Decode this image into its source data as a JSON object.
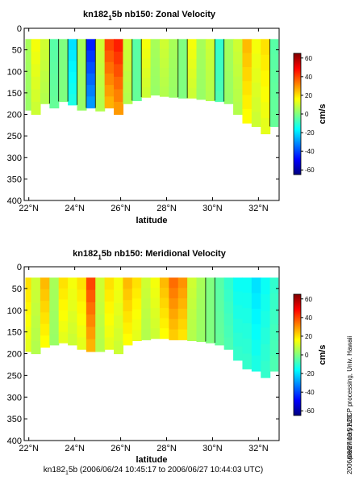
{
  "chart_data": [
    {
      "type": "heatmap",
      "title_main": "kn182",
      "title_sub": "1",
      "title_rest": "5b nb150: Zonal Velocity",
      "xlabel": "latitude",
      "ylabel": "",
      "xlim": [
        21.8,
        32.9
      ],
      "ylim": [
        400,
        0
      ],
      "xticks": [
        22,
        24,
        26,
        28,
        30,
        32
      ],
      "xtick_labels": [
        "22°N",
        "24°N",
        "26°N",
        "28°N",
        "30°N",
        "32°N"
      ],
      "yticks": [
        0,
        50,
        100,
        150,
        200,
        250,
        300,
        350,
        400
      ],
      "colorbar": {
        "label": "cm/s",
        "range": [
          -65,
          65
        ],
        "ticks": [
          -60,
          -40,
          -20,
          0,
          20,
          40,
          60
        ],
        "colormap": "jet"
      },
      "grid": false,
      "depth_top": 25,
      "x": [
        21.9,
        22.3,
        22.7,
        23.1,
        23.5,
        23.9,
        24.3,
        24.7,
        25.1,
        25.5,
        25.9,
        26.3,
        26.7,
        27.1,
        27.5,
        27.9,
        28.3,
        28.7,
        29.1,
        29.5,
        29.9,
        30.3,
        30.7,
        31.1,
        31.5,
        31.9,
        32.3,
        32.7
      ],
      "bottom_depth": [
        190,
        200,
        175,
        185,
        170,
        178,
        190,
        185,
        192,
        185,
        200,
        175,
        168,
        160,
        155,
        158,
        160,
        162,
        162,
        165,
        168,
        170,
        175,
        200,
        220,
        228,
        245,
        228
      ],
      "velocity_profile": [
        5,
        15,
        10,
        -5,
        0,
        -20,
        5,
        -45,
        10,
        40,
        45,
        10,
        -5,
        15,
        5,
        10,
        5,
        0,
        15,
        5,
        10,
        -10,
        5,
        10,
        25,
        15,
        20,
        -5
      ]
    },
    {
      "type": "heatmap",
      "title_main": "kn182",
      "title_sub": "1",
      "title_rest": "5b nb150: Meridional Velocity",
      "xlabel": "latitude",
      "ylabel": "",
      "xlim": [
        21.8,
        32.9
      ],
      "ylim": [
        400,
        0
      ],
      "xticks": [
        22,
        24,
        26,
        28,
        30,
        32
      ],
      "xtick_labels": [
        "22°N",
        "24°N",
        "26°N",
        "28°N",
        "30°N",
        "32°N"
      ],
      "yticks": [
        0,
        50,
        100,
        150,
        200,
        250,
        300,
        350,
        400
      ],
      "colorbar": {
        "label": "cm/s",
        "range": [
          -65,
          65
        ],
        "ticks": [
          -60,
          -40,
          -20,
          0,
          20,
          40,
          60
        ],
        "colormap": "jet"
      },
      "grid": false,
      "depth_top": 25,
      "x": [
        21.9,
        22.3,
        22.7,
        23.1,
        23.5,
        23.9,
        24.3,
        24.7,
        25.1,
        25.5,
        25.9,
        26.3,
        26.7,
        27.1,
        27.5,
        27.9,
        28.3,
        28.7,
        29.1,
        29.5,
        29.9,
        30.3,
        30.7,
        31.1,
        31.5,
        31.9,
        32.3,
        32.7
      ],
      "bottom_depth": [
        195,
        200,
        185,
        180,
        175,
        180,
        190,
        195,
        195,
        190,
        200,
        180,
        170,
        168,
        165,
        165,
        168,
        168,
        170,
        172,
        175,
        180,
        190,
        215,
        235,
        240,
        255,
        240
      ],
      "velocity_profile": [
        20,
        10,
        25,
        5,
        20,
        15,
        20,
        40,
        10,
        20,
        15,
        25,
        20,
        10,
        15,
        25,
        35,
        30,
        10,
        5,
        0,
        -5,
        -10,
        -15,
        -15,
        -20,
        -15,
        -10
      ]
    }
  ],
  "footer": {
    "cruise_prefix": "kn182",
    "cruise_sub": "1",
    "cruise_rest": "5b (2006/06/24 10:45:17 to 2006/06/27 10:44:03 UTC)",
    "side_note": "preliminary ADCP processing,  Univ. Hawaii",
    "timestamp": "2006/08/27 10:51:20"
  }
}
